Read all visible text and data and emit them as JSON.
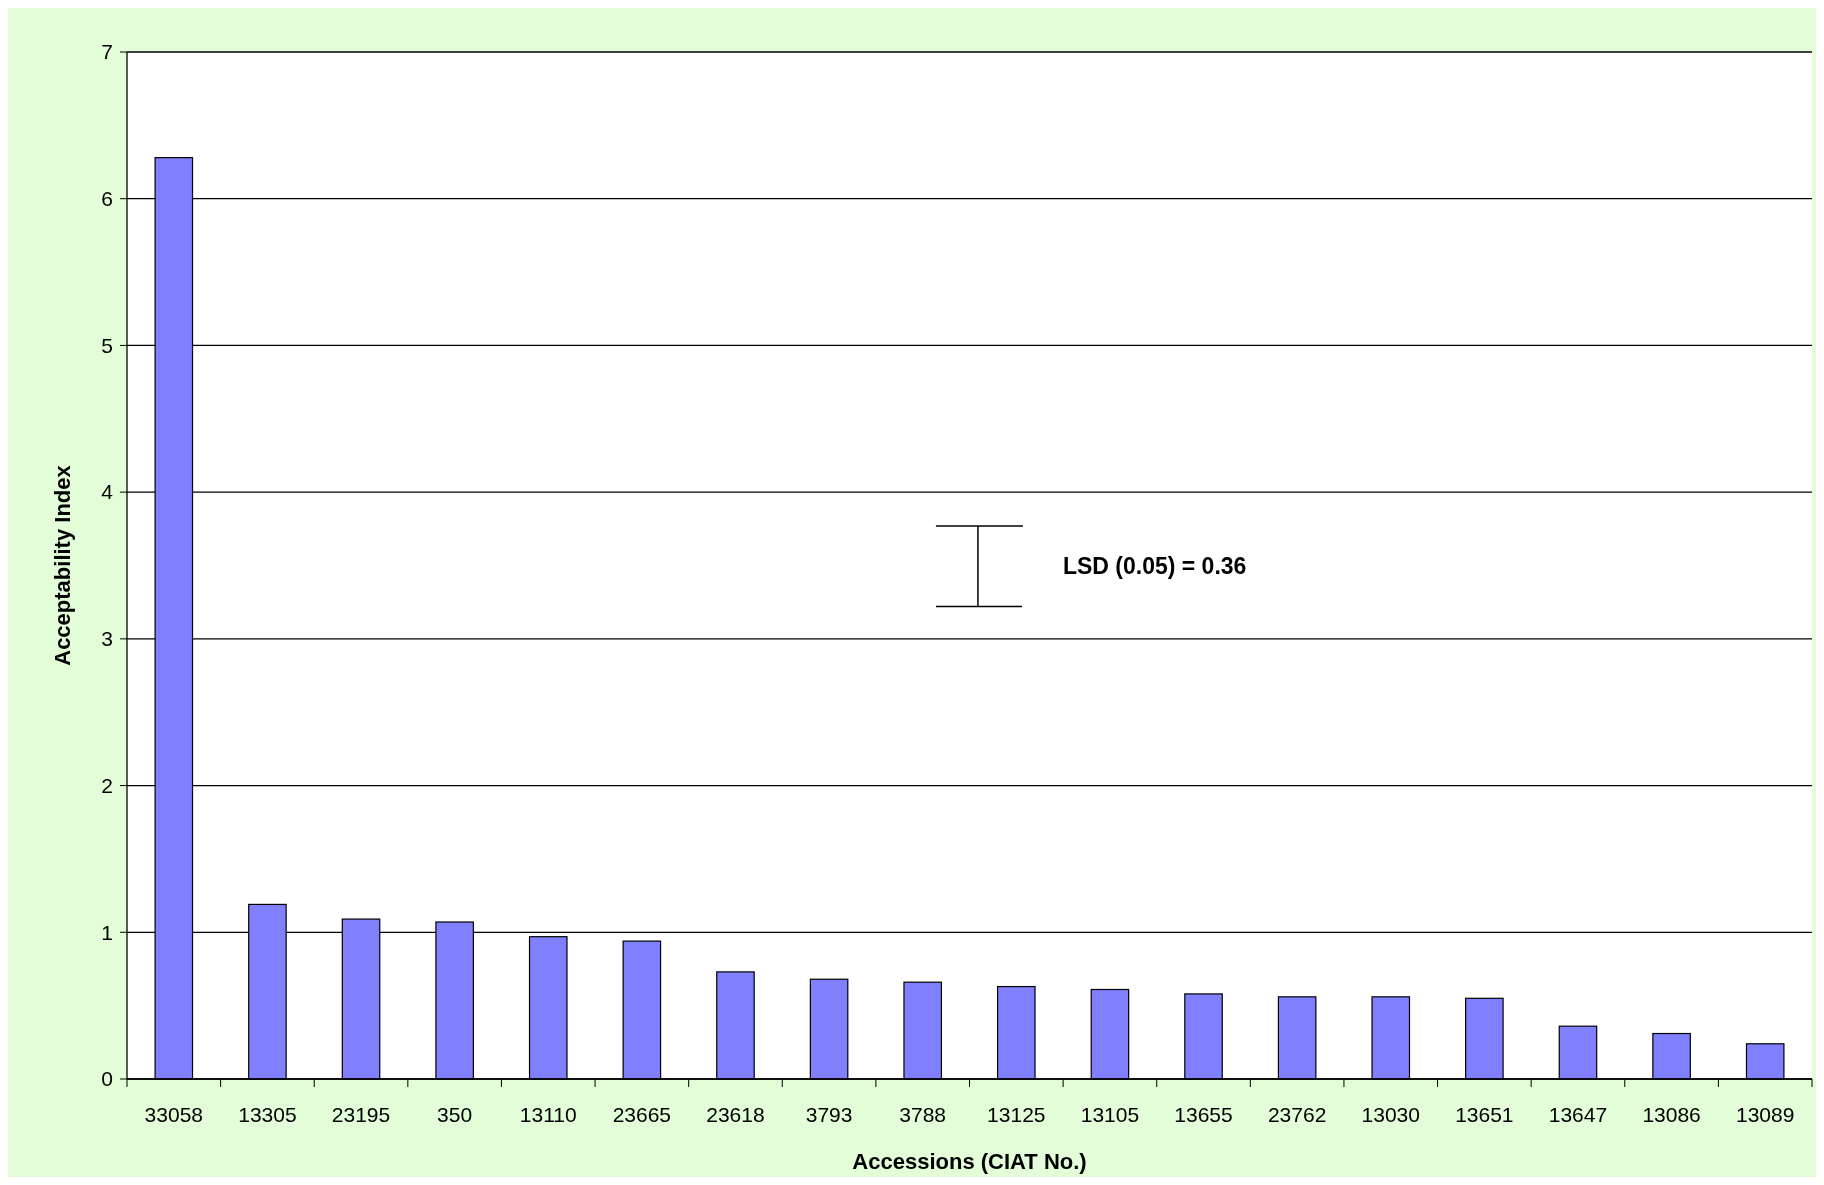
{
  "chart_data": {
    "type": "bar",
    "xlabel": "Accessions (CIAT No.)",
    "ylabel": "Acceptability Index",
    "categories": [
      "33058",
      "13305",
      "23195",
      "350",
      "13110",
      "23665",
      "23618",
      "3793",
      "3788",
      "13125",
      "13105",
      "13655",
      "23762",
      "13030",
      "13651",
      "13647",
      "13086",
      "13089"
    ],
    "values": [
      6.28,
      1.19,
      1.09,
      1.07,
      0.97,
      0.94,
      0.73,
      0.68,
      0.66,
      0.63,
      0.61,
      0.58,
      0.56,
      0.56,
      0.55,
      0.36,
      0.31,
      0.24
    ],
    "color": "#8080ff",
    "ylim": [
      0,
      7
    ],
    "yticks": [
      0,
      1,
      2,
      3,
      4,
      5,
      6,
      7
    ],
    "grid": "y",
    "annotations": [
      "LSD (0.05) = 0.36"
    ]
  }
}
